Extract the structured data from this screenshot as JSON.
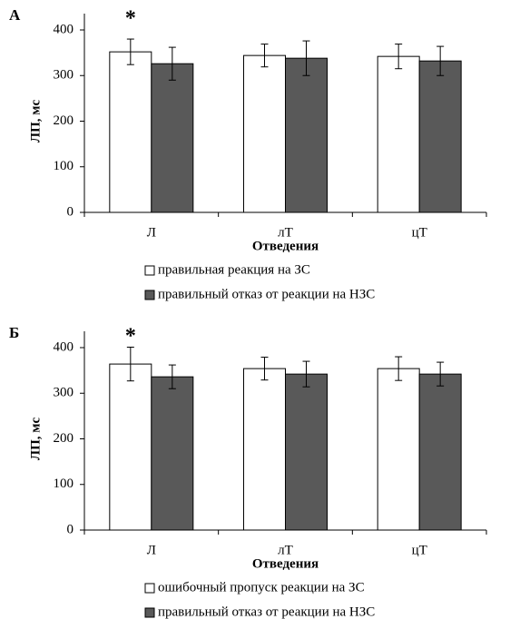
{
  "chart_data": [
    {
      "type": "bar",
      "panel": "А",
      "annotation": "*",
      "ylabel": "ЛП, мс",
      "xlabel": "Отведения",
      "categories": [
        "Л",
        "лТ",
        "цТ"
      ],
      "ylim": [
        0,
        400
      ],
      "yticks": [
        0,
        100,
        200,
        300,
        400
      ],
      "series": [
        {
          "name": "правильная реакция на ЗС",
          "color": "#ffffff",
          "values": [
            352,
            344,
            342
          ],
          "errors": [
            28,
            25,
            27
          ]
        },
        {
          "name": "правильный отказ от реакции на НЗС",
          "color": "#595959",
          "values": [
            326,
            338,
            332
          ],
          "errors": [
            36,
            38,
            32
          ]
        }
      ]
    },
    {
      "type": "bar",
      "panel": "Б",
      "annotation": "*",
      "ylabel": "ЛП, мс",
      "xlabel": "Отведения",
      "categories": [
        "Л",
        "лТ",
        "цТ"
      ],
      "ylim": [
        0,
        400
      ],
      "yticks": [
        0,
        100,
        200,
        300,
        400
      ],
      "series": [
        {
          "name": "ошибочный пропуск реакции на ЗС",
          "color": "#ffffff",
          "values": [
            364,
            354,
            354
          ],
          "errors": [
            37,
            25,
            26
          ]
        },
        {
          "name": "правильный отказ от реакции на НЗС",
          "color": "#595959",
          "values": [
            336,
            342,
            342
          ],
          "errors": [
            26,
            28,
            26
          ]
        }
      ]
    }
  ]
}
